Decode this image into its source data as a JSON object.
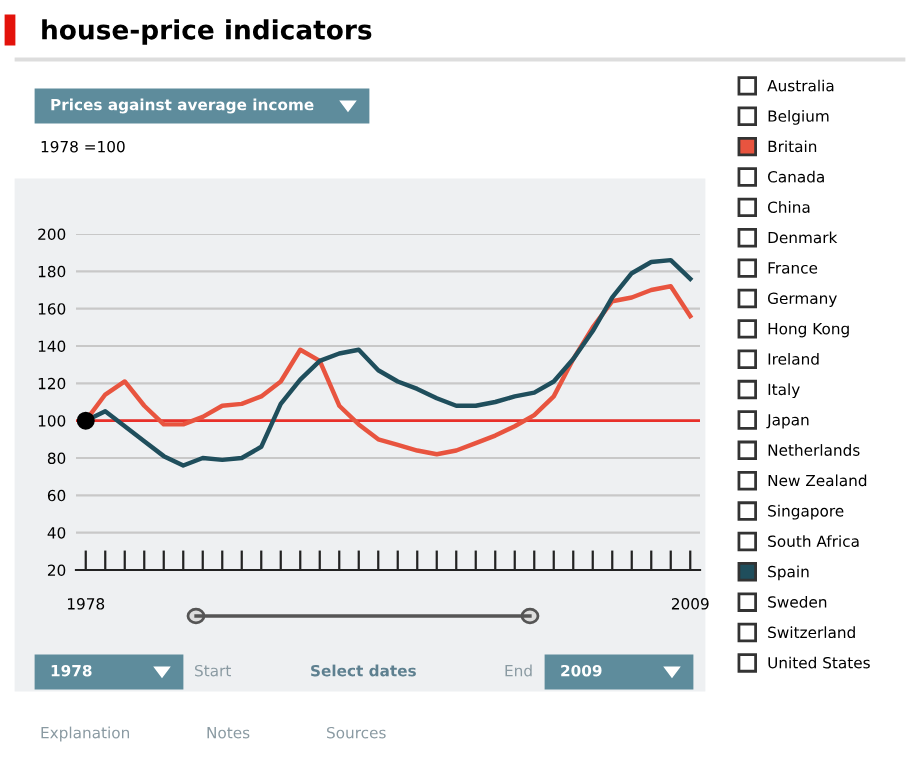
{
  "chart_data": {
    "type": "line",
    "title": "house-price indicators",
    "subtitle": "1978 =100",
    "x": [
      1978,
      1979,
      1980,
      1981,
      1982,
      1983,
      1984,
      1985,
      1986,
      1987,
      1988,
      1989,
      1990,
      1991,
      1992,
      1993,
      1994,
      1995,
      1996,
      1997,
      1998,
      1999,
      2000,
      2001,
      2002,
      2003,
      2004,
      2005,
      2006,
      2007,
      2008,
      2009
    ],
    "series": [
      {
        "name": "Australia",
        "color": "#ffffff",
        "values": [
          null,
          null,
          null,
          null,
          null,
          null,
          null,
          null,
          null,
          null,
          null,
          null,
          null,
          null,
          null,
          null,
          null,
          null,
          null,
          null,
          null,
          null,
          null,
          null,
          null,
          null,
          null,
          null,
          null,
          null,
          null,
          null
        ]
      },
      {
        "name": "Belgium",
        "color": "#ffffff",
        "values": [
          null,
          null,
          null,
          null,
          null,
          null,
          null,
          null,
          null,
          null,
          null,
          null,
          null,
          null,
          null,
          null,
          null,
          null,
          null,
          null,
          null,
          null,
          null,
          null,
          null,
          null,
          null,
          null,
          null,
          null,
          null,
          null
        ]
      },
      {
        "name": "Britain",
        "color": "#e8543f",
        "values": [
          100,
          114,
          121,
          108,
          98,
          98,
          102,
          108,
          109,
          113,
          121,
          138,
          132,
          108,
          98,
          90,
          87,
          84,
          82,
          84,
          88,
          92,
          97,
          103,
          113,
          133,
          150,
          164,
          166,
          170,
          172,
          156
        ]
      },
      {
        "name": "Canada",
        "color": "#ffffff",
        "values": [
          null,
          null,
          null,
          null,
          null,
          null,
          null,
          null,
          null,
          null,
          null,
          null,
          null,
          null,
          null,
          null,
          null,
          null,
          null,
          null,
          null,
          null,
          null,
          null,
          null,
          null,
          null,
          null,
          null,
          null,
          null,
          null
        ]
      },
      {
        "name": "China",
        "color": "#ffffff",
        "values": [
          null,
          null,
          null,
          null,
          null,
          null,
          null,
          null,
          null,
          null,
          null,
          null,
          null,
          null,
          null,
          null,
          null,
          null,
          null,
          null,
          null,
          null,
          null,
          null,
          null,
          null,
          null,
          null,
          null,
          null,
          null,
          null
        ]
      },
      {
        "name": "Denmark",
        "color": "#ffffff",
        "values": [
          null,
          null,
          null,
          null,
          null,
          null,
          null,
          null,
          null,
          null,
          null,
          null,
          null,
          null,
          null,
          null,
          null,
          null,
          null,
          null,
          null,
          null,
          null,
          null,
          null,
          null,
          null,
          null,
          null,
          null,
          null,
          null
        ]
      },
      {
        "name": "France",
        "color": "#ffffff",
        "values": [
          null,
          null,
          null,
          null,
          null,
          null,
          null,
          null,
          null,
          null,
          null,
          null,
          null,
          null,
          null,
          null,
          null,
          null,
          null,
          null,
          null,
          null,
          null,
          null,
          null,
          null,
          null,
          null,
          null,
          null,
          null,
          null
        ]
      },
      {
        "name": "Germany",
        "color": "#ffffff",
        "values": [
          null,
          null,
          null,
          null,
          null,
          null,
          null,
          null,
          null,
          null,
          null,
          null,
          null,
          null,
          null,
          null,
          null,
          null,
          null,
          null,
          null,
          null,
          null,
          null,
          null,
          null,
          null,
          null,
          null,
          null,
          null,
          null
        ]
      },
      {
        "name": "Hong Kong",
        "color": "#ffffff",
        "values": [
          null,
          null,
          null,
          null,
          null,
          null,
          null,
          null,
          null,
          null,
          null,
          null,
          null,
          null,
          null,
          null,
          null,
          null,
          null,
          null,
          null,
          null,
          null,
          null,
          null,
          null,
          null,
          null,
          null,
          null,
          null,
          null
        ]
      },
      {
        "name": "Ireland",
        "color": "#ffffff",
        "values": [
          null,
          null,
          null,
          null,
          null,
          null,
          null,
          null,
          null,
          null,
          null,
          null,
          null,
          null,
          null,
          null,
          null,
          null,
          null,
          null,
          null,
          null,
          null,
          null,
          null,
          null,
          null,
          null,
          null,
          null,
          null,
          null
        ]
      },
      {
        "name": "Italy",
        "color": "#ffffff",
        "values": [
          null,
          null,
          null,
          null,
          null,
          null,
          null,
          null,
          null,
          null,
          null,
          null,
          null,
          null,
          null,
          null,
          null,
          null,
          null,
          null,
          null,
          null,
          null,
          null,
          null,
          null,
          null,
          null,
          null,
          null,
          null,
          null
        ]
      },
      {
        "name": "Japan",
        "color": "#ffffff",
        "values": [
          null,
          null,
          null,
          null,
          null,
          null,
          null,
          null,
          null,
          null,
          null,
          null,
          null,
          null,
          null,
          null,
          null,
          null,
          null,
          null,
          null,
          null,
          null,
          null,
          null,
          null,
          null,
          null,
          null,
          null,
          null,
          null
        ]
      },
      {
        "name": "Netherlands",
        "color": "#ffffff",
        "values": [
          null,
          null,
          null,
          null,
          null,
          null,
          null,
          null,
          null,
          null,
          null,
          null,
          null,
          null,
          null,
          null,
          null,
          null,
          null,
          null,
          null,
          null,
          null,
          null,
          null,
          null,
          null,
          null,
          null,
          null,
          null,
          null
        ]
      },
      {
        "name": "New Zealand",
        "color": "#ffffff",
        "values": [
          null,
          null,
          null,
          null,
          null,
          null,
          null,
          null,
          null,
          null,
          null,
          null,
          null,
          null,
          null,
          null,
          null,
          null,
          null,
          null,
          null,
          null,
          null,
          null,
          null,
          null,
          null,
          null,
          null,
          null,
          null,
          null
        ]
      },
      {
        "name": "Singapore",
        "color": "#ffffff",
        "values": [
          null,
          null,
          null,
          null,
          null,
          null,
          null,
          null,
          null,
          null,
          null,
          null,
          null,
          null,
          null,
          null,
          null,
          null,
          null,
          null,
          null,
          null,
          null,
          null,
          null,
          null,
          null,
          null,
          null,
          null,
          null,
          null
        ]
      },
      {
        "name": "South Africa",
        "color": "#ffffff",
        "values": [
          null,
          null,
          null,
          null,
          null,
          null,
          null,
          null,
          null,
          null,
          null,
          null,
          null,
          null,
          null,
          null,
          null,
          null,
          null,
          null,
          null,
          null,
          null,
          null,
          null,
          null,
          null,
          null,
          null,
          null,
          null,
          null
        ]
      },
      {
        "name": "Spain",
        "color": "#1f4e5c",
        "values": [
          100,
          105,
          97,
          89,
          81,
          76,
          80,
          79,
          80,
          86,
          109,
          122,
          132,
          136,
          138,
          127,
          121,
          117,
          112,
          108,
          108,
          110,
          113,
          115,
          121,
          133,
          148,
          166,
          179,
          185,
          186,
          176
        ]
      },
      {
        "name": "Sweden",
        "color": "#ffffff",
        "values": [
          null,
          null,
          null,
          null,
          null,
          null,
          null,
          null,
          null,
          null,
          null,
          null,
          null,
          null,
          null,
          null,
          null,
          null,
          null,
          null,
          null,
          null,
          null,
          null,
          null,
          null,
          null,
          null,
          null,
          null,
          null,
          null
        ]
      },
      {
        "name": "Switzerland",
        "color": "#ffffff",
        "values": [
          null,
          null,
          null,
          null,
          null,
          null,
          null,
          null,
          null,
          null,
          null,
          null,
          null,
          null,
          null,
          null,
          null,
          null,
          null,
          null,
          null,
          null,
          null,
          null,
          null,
          null,
          null,
          null,
          null,
          null,
          null,
          null
        ]
      },
      {
        "name": "United States",
        "color": "#ffffff",
        "values": [
          null,
          null,
          null,
          null,
          null,
          null,
          null,
          null,
          null,
          null,
          null,
          null,
          null,
          null,
          null,
          null,
          null,
          null,
          null,
          null,
          null,
          null,
          null,
          null,
          null,
          null,
          null,
          null,
          null,
          null,
          null,
          null
        ]
      },
      {
        "type": "scatter",
        "color": "#000000",
        "x": [
          1978
        ],
        "values": [
          100
        ]
      }
    ],
    "xlim": [
      1977.5,
      2009.5
    ],
    "ylim": [
      20,
      200
    ],
    "xticks": [
      {
        "value": 1978,
        "label": "1978"
      },
      {
        "value": 1979,
        "label": null
      },
      {
        "value": 1980,
        "label": null
      },
      {
        "value": 1981,
        "label": null
      },
      {
        "value": 1982,
        "label": null
      },
      {
        "value": 1983,
        "label": null
      },
      {
        "value": 1984,
        "label": null
      },
      {
        "value": 1985,
        "label": null
      },
      {
        "value": 1986,
        "label": null
      },
      {
        "value": 1987,
        "label": null
      },
      {
        "value": 1988,
        "label": null
      },
      {
        "value": 1989,
        "label": null
      },
      {
        "value": 1990,
        "label": null
      },
      {
        "value": 1991,
        "label": null
      },
      {
        "value": 1992,
        "label": null
      },
      {
        "value": 1993,
        "label": null
      },
      {
        "value": 1994,
        "label": null
      },
      {
        "value": 1995,
        "label": null
      },
      {
        "value": 1996,
        "label": null
      },
      {
        "value": 1997,
        "label": null
      },
      {
        "value": 1998,
        "label": null
      },
      {
        "value": 1999,
        "label": null
      },
      {
        "value": 2000,
        "label": null
      },
      {
        "value": 2001,
        "label": null
      },
      {
        "value": 2002,
        "label": null
      },
      {
        "value": 2003,
        "label": null
      },
      {
        "value": 2004,
        "label": null
      },
      {
        "value": 2005,
        "label": null
      },
      {
        "value": 2006,
        "label": null
      },
      {
        "value": 2007,
        "label": null
      },
      {
        "value": 2008,
        "label": null
      },
      {
        "value": 2009,
        "label": "2009"
      }
    ],
    "yticks": [
      20,
      40,
      60,
      80,
      100,
      120,
      140,
      160,
      180,
      200
    ],
    "ref_lines": [
      {
        "axis": "y",
        "value": 100,
        "color": "#e8302a"
      }
    ],
    "grid": "y",
    "legend": "right",
    "line_style": "solid",
    "annotations": [
      "Prices against average income",
      "1978",
      "Start",
      "Select dates",
      "End",
      "2009",
      "Explanation",
      "Notes",
      "Sources"
    ]
  }
}
